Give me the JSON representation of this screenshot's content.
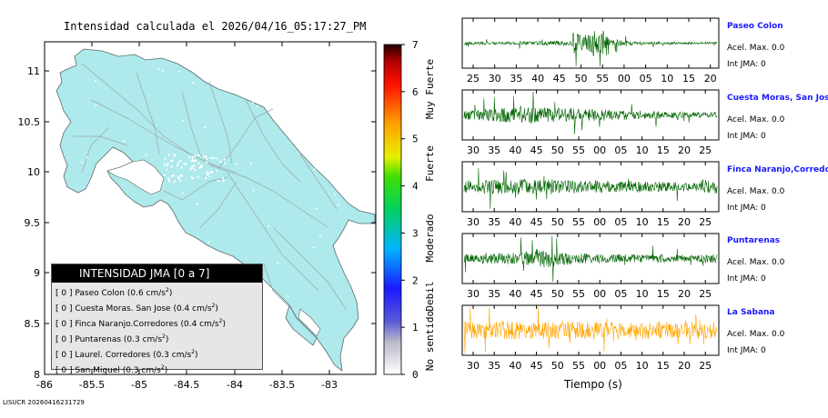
{
  "title": "Intensidad calculada el 2026/04/16_05:17:27_PM",
  "footer_id": "LISUCR 20260416231729",
  "map": {
    "lat_ticks": [
      "11",
      "10.5",
      "10",
      "9.5",
      "9",
      "8.5",
      "8"
    ],
    "lon_ticks": [
      "-86",
      "-85.5",
      "-85",
      "-84.5",
      "-84",
      "-83.5",
      "-83"
    ],
    "land_color": "#aee9eb",
    "sea_color": "#ffffff"
  },
  "colorbar": {
    "ticks": [
      "0",
      "1",
      "2",
      "3",
      "4",
      "5",
      "6",
      "7"
    ],
    "category_labels": [
      "No sentido",
      "Debil",
      "Moderado",
      "Fuerte",
      "Muy Fuerte"
    ]
  },
  "legend": {
    "title": "INTENSIDAD JMA [0 a 7]",
    "rows": [
      {
        "level": "[ 0 ]",
        "station": "Paseo Colon",
        "value": "(0.6 cm/s",
        "unit_exp": "2",
        "close": ")"
      },
      {
        "level": "[ 0 ]",
        "station": "Cuesta Moras. San Jose",
        "value": "(0.4 cm/s",
        "unit_exp": "2",
        "close": ")"
      },
      {
        "level": "[ 0 ]",
        "station": "Finca Naranjo.Corredores",
        "value": "(0.4 cm/s",
        "unit_exp": "2",
        "close": ")"
      },
      {
        "level": "[ 0 ]",
        "station": "Puntarenas",
        "value": "(0.3 cm/s",
        "unit_exp": "2",
        "close": ")"
      },
      {
        "level": "[ 0 ]",
        "station": "Laurel. Corredores",
        "value": "(0.3 cm/s",
        "unit_exp": "2",
        "close": ")"
      },
      {
        "level": "[ 0 ]",
        "station": "San Miguel",
        "value": "(0.3 cm/s",
        "unit_exp": "2",
        "close": ")"
      }
    ]
  },
  "traces": [
    {
      "name": "Paseo Colon",
      "accel": "Acel. Max. 0.0",
      "jma": "Int JMA: 0",
      "color": "#006400",
      "ticks": [
        "25",
        "30",
        "35",
        "40",
        "45",
        "50",
        "55",
        "00",
        "05",
        "10",
        "15",
        "20"
      ]
    },
    {
      "name": "Cuesta Moras, San Jose",
      "accel": "Acel. Max. 0.0",
      "jma": "Int JMA: 0",
      "color": "#006400",
      "ticks": [
        "30",
        "35",
        "40",
        "45",
        "50",
        "55",
        "00",
        "05",
        "10",
        "15",
        "20",
        "25"
      ]
    },
    {
      "name": "Finca Naranjo,Corredores",
      "accel": "Acel. Max. 0.0",
      "jma": "Int JMA: 0",
      "color": "#006400",
      "ticks": [
        "30",
        "35",
        "40",
        "45",
        "50",
        "55",
        "00",
        "05",
        "10",
        "15",
        "20",
        "25"
      ]
    },
    {
      "name": "Puntarenas",
      "accel": "Acel. Max. 0.0",
      "jma": "Int JMA: 0",
      "color": "#006400",
      "ticks": [
        "30",
        "35",
        "40",
        "45",
        "50",
        "55",
        "00",
        "05",
        "10",
        "15",
        "20",
        "25"
      ]
    },
    {
      "name": "La Sabana",
      "accel": "Acel. Max. 0.0",
      "jma": "Int JMA: 0",
      "color": "#ffa500",
      "ticks": [
        "30",
        "35",
        "40",
        "45",
        "50",
        "55",
        "00",
        "05",
        "10",
        "15",
        "20",
        "25"
      ]
    }
  ],
  "x_axis_label": "Tiempo (s)"
}
